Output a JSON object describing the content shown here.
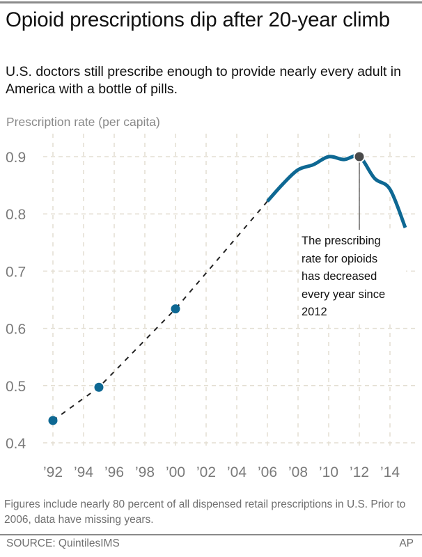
{
  "header": {
    "title": "Opioid prescriptions dip after 20-year climb",
    "subtitle": "U.S. doctors still prescribe enough to provide nearly every adult in America with a bottle of pills."
  },
  "footer": {
    "note": "Figures include nearly 80 percent of all dispensed retail prescriptions in U.S. Prior to 2006, data have missing years.",
    "source": "SOURCE: QuintilesIMS",
    "credit": "AP"
  },
  "colors": {
    "line": "#0e6893",
    "highlight_point": "#4a4a4a",
    "dashed_line": "#222222",
    "grid": "#e3ded2",
    "tick_text": "#7a7a7a"
  },
  "chart_data": {
    "type": "line",
    "title": "Opioid prescriptions dip after 20-year climb",
    "ylabel": "Prescription rate (per capita)",
    "xlabel": "",
    "ylim": [
      0.4,
      0.9
    ],
    "xlim": [
      1992,
      2015
    ],
    "grid": true,
    "yticks": [
      0.4,
      0.5,
      0.6,
      0.7,
      0.8,
      0.9
    ],
    "ytick_labels": [
      "0.4",
      "0.5",
      "0.6",
      "0.7",
      "0.8",
      "0.9"
    ],
    "xticks": [
      1992,
      1994,
      1996,
      1998,
      2000,
      2002,
      2004,
      2006,
      2008,
      2010,
      2012,
      2014
    ],
    "xtick_labels": [
      "’92",
      "’94",
      "’96",
      "’98",
      "’00",
      "’02",
      "’04",
      "’06",
      "’08",
      "’10",
      "’12",
      "’14"
    ],
    "series": [
      {
        "name": "Sparse years (dashed, with markers)",
        "style": "dashed-markers",
        "x": [
          1992,
          1995,
          2000,
          2006
        ],
        "values": [
          0.439,
          0.497,
          0.634,
          0.822
        ],
        "markers_at": [
          1992,
          1995,
          2000
        ]
      },
      {
        "name": "Annual data (solid)",
        "style": "solid",
        "x": [
          2006,
          2007,
          2008,
          2009,
          2010,
          2011,
          2012,
          2013,
          2014,
          2015
        ],
        "values": [
          0.822,
          0.852,
          0.877,
          0.886,
          0.9,
          0.895,
          0.9,
          0.862,
          0.843,
          0.776
        ]
      }
    ],
    "highlight": {
      "x": 2012,
      "value": 0.9
    },
    "annotation": {
      "x": 2012,
      "text_lines": [
        "The prescribing",
        "rate for opioids",
        "has decreased",
        "every year since",
        "2012"
      ]
    }
  }
}
